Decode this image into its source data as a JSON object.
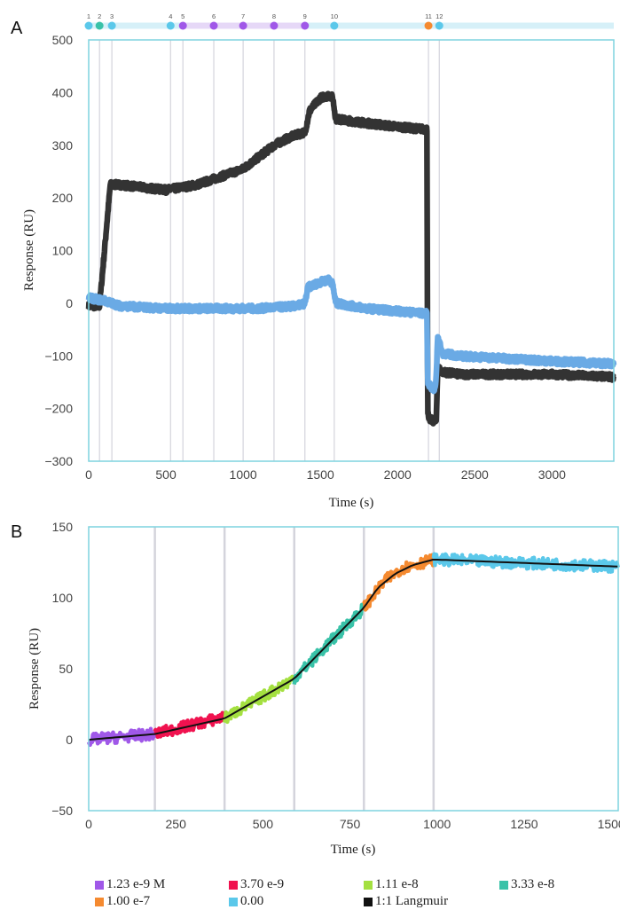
{
  "panel_a_letter": "A",
  "panel_b_letter": "B",
  "colors": {
    "frame": "#7fd3df",
    "gridline": "#d4d4dc",
    "sensorgram_black": "#333333",
    "sensorgram_blue": "#6aaae5",
    "marker_cyan": "#5bc8ea",
    "marker_purple": "#a058e8",
    "marker_orange": "#f58a30",
    "marker_teal": "#39c2a8",
    "track_cyan": "#d6f0f8",
    "track_purple": "#e6d8f7"
  },
  "chart_data": [
    {
      "type": "line",
      "panel": "A",
      "xlabel": "Time (s)",
      "ylabel": "Response (RU)",
      "xlim": [
        0,
        3400
      ],
      "ylim": [
        -300,
        500
      ],
      "xticks": [
        "0",
        "500",
        "1000",
        "1500",
        "2000",
        "2500",
        "3000"
      ],
      "yticks": [
        "500",
        "400",
        "300",
        "200",
        "100",
        "0",
        "−100",
        "−200",
        "−300"
      ],
      "vertical_lines_x": [
        70,
        150,
        530,
        610,
        810,
        1000,
        1200,
        1400,
        1590,
        2200,
        2270
      ],
      "markers": [
        {
          "label": "1",
          "x": 0,
          "color": "#5bc8ea"
        },
        {
          "label": "2",
          "x": 70,
          "color": "#39c2a8"
        },
        {
          "label": "3",
          "x": 150,
          "color": "#5bc8ea"
        },
        {
          "label": "4",
          "x": 530,
          "color": "#5bc8ea"
        },
        {
          "label": "5",
          "x": 610,
          "color": "#a058e8"
        },
        {
          "label": "6",
          "x": 810,
          "color": "#a058e8"
        },
        {
          "label": "7",
          "x": 1000,
          "color": "#a058e8"
        },
        {
          "label": "8",
          "x": 1200,
          "color": "#a058e8"
        },
        {
          "label": "9",
          "x": 1400,
          "color": "#a058e8"
        },
        {
          "label": "10",
          "x": 1590,
          "color": "#5bc8ea"
        },
        {
          "label": "11",
          "x": 2200,
          "color": "#f58a30"
        },
        {
          "label": "12",
          "x": 2270,
          "color": "#5bc8ea"
        }
      ],
      "series": [
        {
          "color": "#333333",
          "noise": 6,
          "x": [
            0,
            70,
            90,
            140,
            200,
            500,
            700,
            1000,
            1200,
            1300,
            1400,
            1430,
            1500,
            1560,
            1580,
            1600,
            1800,
            2000,
            2190,
            2195,
            2200,
            2250,
            2260,
            2280,
            2400,
            2700,
            3000,
            3400
          ],
          "y": [
            -5,
            -5,
            60,
            225,
            225,
            215,
            225,
            255,
            300,
            315,
            325,
            365,
            390,
            395,
            390,
            350,
            342,
            335,
            330,
            -200,
            -220,
            -225,
            -120,
            -130,
            -135,
            -135,
            -135,
            -140
          ]
        },
        {
          "color": "#6aaae5",
          "noise": 6,
          "x": [
            0,
            100,
            200,
            500,
            800,
            1100,
            1350,
            1400,
            1420,
            1500,
            1560,
            1580,
            1600,
            1800,
            2000,
            2190,
            2195,
            2220,
            2240,
            2250,
            2260,
            2275,
            2290,
            2400,
            2700,
            3000,
            3400
          ],
          "y": [
            10,
            5,
            -5,
            -10,
            -10,
            -10,
            -5,
            0,
            30,
            40,
            45,
            35,
            0,
            -10,
            -15,
            -20,
            -150,
            -160,
            -165,
            -140,
            -60,
            -80,
            -95,
            -100,
            -105,
            -110,
            -115
          ]
        }
      ]
    },
    {
      "type": "line",
      "panel": "B",
      "xlabel": "Time (s)",
      "ylabel": "Response (RU)",
      "xlim": [
        0,
        1520
      ],
      "ylim": [
        -50,
        150
      ],
      "xticks": [
        "0",
        "250",
        "500",
        "750",
        "1000",
        "1250",
        "1500"
      ],
      "yticks": [
        "150",
        "100",
        "50",
        "0",
        "−50"
      ],
      "vertical_lines_x": [
        190,
        390,
        590,
        790,
        990
      ],
      "series": [
        {
          "name": "1.23 e-9 M",
          "color": "#a058e8",
          "noise": 4,
          "x": [
            0,
            190
          ],
          "y": [
            0,
            4
          ]
        },
        {
          "name": "3.70 e-9",
          "color": "#f0124f",
          "noise": 4,
          "x": [
            190,
            390
          ],
          "y": [
            4,
            16
          ]
        },
        {
          "name": "1.11 e-8",
          "color": "#a4e040",
          "noise": 4,
          "x": [
            390,
            590
          ],
          "y": [
            15,
            43
          ]
        },
        {
          "name": "3.33 e-8",
          "color": "#39c2a8",
          "noise": 4,
          "x": [
            590,
            790
          ],
          "y": [
            43,
            93
          ]
        },
        {
          "name": "1.00 e-7",
          "color": "#f58a30",
          "noise": 4,
          "x": [
            790,
            850,
            900,
            990
          ],
          "y": [
            93,
            112,
            121,
            127
          ]
        },
        {
          "name": "0.00",
          "color": "#5bc8ea",
          "noise": 4,
          "x": [
            990,
            1520
          ],
          "y": [
            127,
            122
          ]
        },
        {
          "name": "1:1 Langmuir",
          "color": "#111111",
          "noise": 0,
          "x": [
            0,
            190,
            390,
            590,
            790,
            830,
            880,
            930,
            990,
            1200,
            1520
          ],
          "y": [
            0,
            4,
            15,
            43,
            93,
            107,
            117,
            123,
            127,
            125,
            122
          ]
        }
      ]
    }
  ]
}
